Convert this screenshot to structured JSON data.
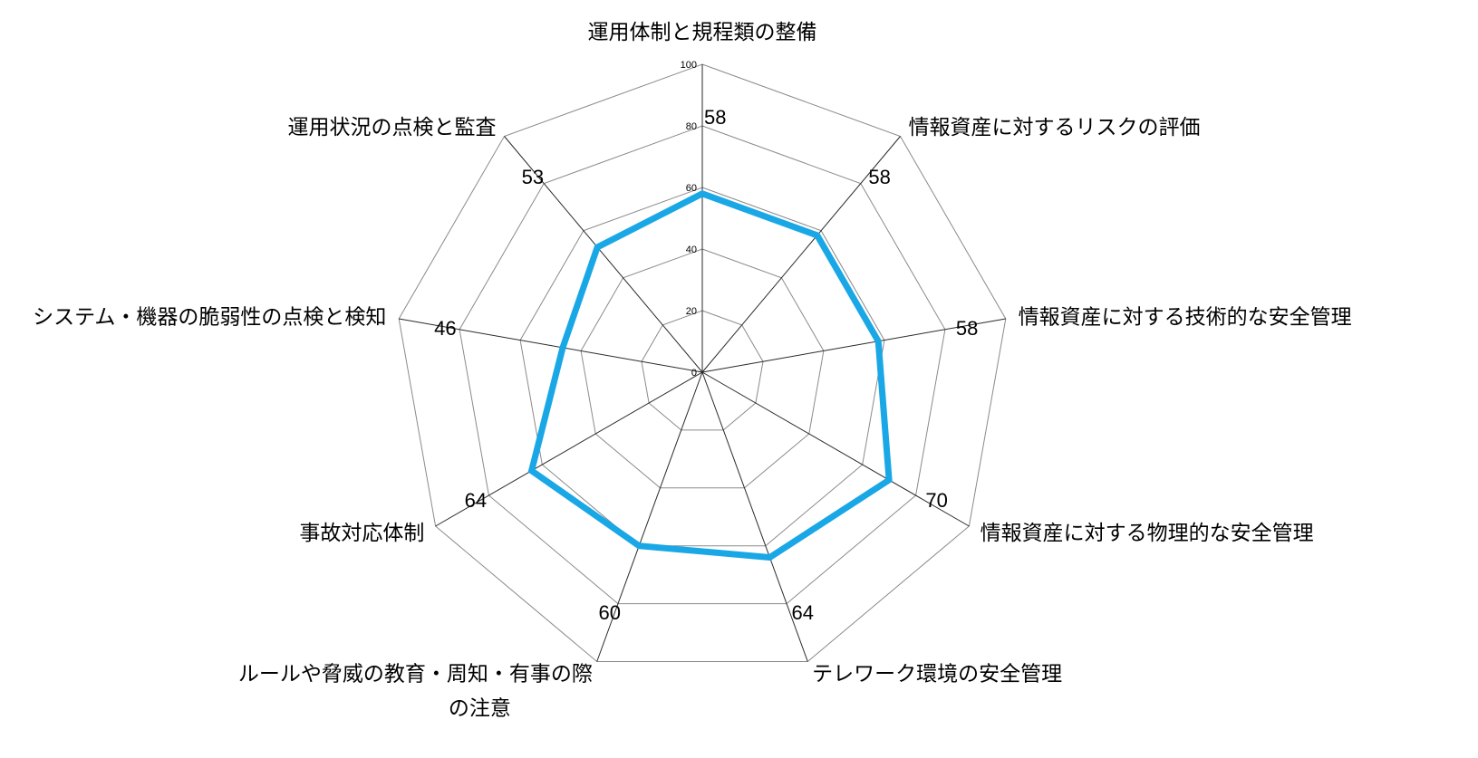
{
  "chart_data": {
    "type": "radar",
    "title": "",
    "categories": [
      "運用体制と規程類の整備",
      "情報資産に対するリスクの評価",
      "情報資産に対する技術的な安全管理",
      "情報資産に対する物理的な安全管理",
      "テレワーク環境の安全管理",
      "ルールや脅威の教育・周知・有事の際の注意",
      "事故対応体制",
      "システム・機器の脆弱性の点検と検知",
      "運用状況の点検と監査"
    ],
    "category_lines": [
      [
        "運用体制と規程類の整備"
      ],
      [
        "情報資産に対するリスクの評価"
      ],
      [
        "情報資産に対する技術的な安全管理"
      ],
      [
        "情報資産に対する物理的な安全管理"
      ],
      [
        "テレワーク環境の安全管理"
      ],
      [
        "ルールや脅威の教育・周知・有事の際",
        "の注意"
      ],
      [
        "事故対応体制"
      ],
      [
        "システム・機器の脆弱性の点検と検知"
      ],
      [
        "運用状況の点検と監査"
      ]
    ],
    "values": [
      58,
      58,
      58,
      70,
      64,
      60,
      64,
      46,
      53
    ],
    "value_labels": [
      "58",
      "58",
      "58",
      "70",
      "64",
      "60",
      "64",
      "46",
      "53"
    ],
    "r_range": [
      0,
      100
    ],
    "r_ticks": [
      0,
      20,
      40,
      60,
      80,
      100
    ],
    "r_tick_labels": [
      "0",
      "20",
      "40",
      "60",
      "80",
      "100"
    ],
    "grid": true,
    "series_color": "#1aa7e6"
  }
}
